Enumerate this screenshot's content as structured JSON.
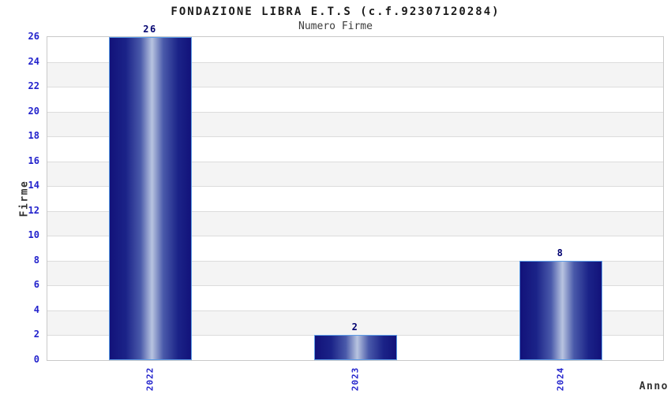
{
  "chart_data": {
    "type": "bar",
    "title": "FONDAZIONE LIBRA E.T.S (c.f.92307120284)",
    "subtitle": "Numero Firme",
    "xlabel": "Anno",
    "ylabel": "Firme",
    "categories": [
      "2022",
      "2023",
      "2024"
    ],
    "values": [
      26,
      2,
      8
    ],
    "ylim": [
      0,
      26
    ],
    "ytick_step": 2,
    "grid": true,
    "legend": false,
    "band_pattern": "alternating horizontal bands, white and light gray, every 2 units",
    "colors": {
      "bar_dark": "#12127a",
      "bar_mid": "#4a5aaa",
      "bar_light": "#b8c4e0",
      "bar_border": "#5c9ce6",
      "tick_label": "#2222cc",
      "value_label": "#000070",
      "band_gray": "#f4f4f4",
      "band_white": "#ffffff",
      "gridline": "#dcdcdc",
      "plot_border": "#c9c9c9",
      "title_color": "#1a1a1a",
      "subtitle_color": "#3c3c3c",
      "axis_title_color": "#333333"
    }
  }
}
